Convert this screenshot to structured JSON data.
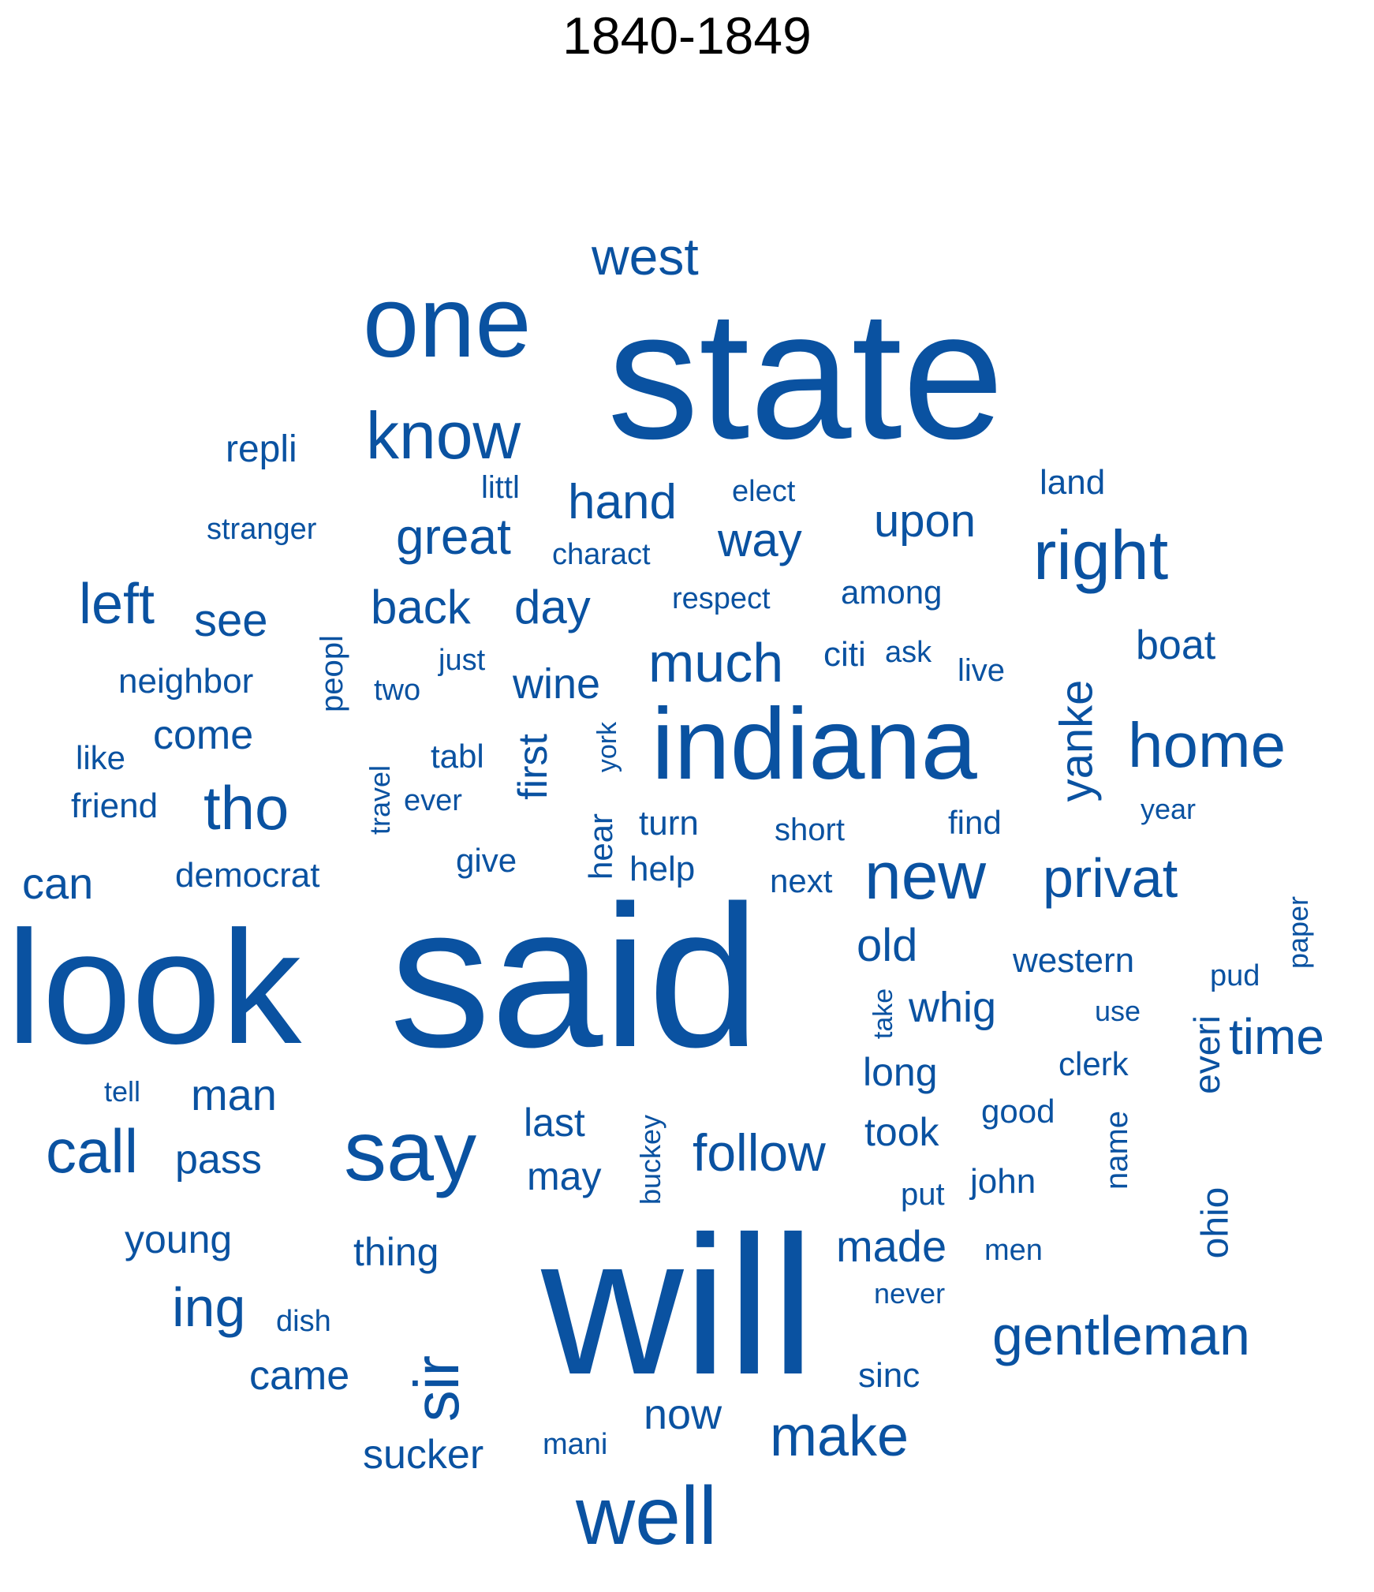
{
  "title": "1840-1849",
  "colors": {
    "word": "#0a52a1",
    "title": "#000000"
  },
  "words": [
    "state",
    "said",
    "will",
    "look",
    "indiana",
    "one",
    "say",
    "know",
    "well",
    "right",
    "home",
    "new",
    "privat",
    "gentleman",
    "much",
    "tho",
    "call",
    "left",
    "hand",
    "great",
    "upon",
    "west",
    "way",
    "back",
    "day",
    "follow",
    "make",
    "ing",
    "sir",
    "first",
    "yanke",
    "see",
    "time",
    "wine",
    "come",
    "man",
    "old",
    "whig",
    "long",
    "made",
    "took",
    "pass",
    "can",
    "last",
    "may",
    "thing",
    "young",
    "came",
    "now",
    "sucker",
    "repli",
    "stranger",
    "littl",
    "elect",
    "charact",
    "land",
    "respect",
    "among",
    "boat",
    "neighbor",
    "peopl",
    "two",
    "just",
    "citi",
    "ask",
    "live",
    "like",
    "tabl",
    "york",
    "friend",
    "travel",
    "ever",
    "turn",
    "short",
    "find",
    "year",
    "democrat",
    "give",
    "hear",
    "help",
    "next",
    "western",
    "pud",
    "paper",
    "take",
    "use",
    "tell",
    "clerk",
    "everi",
    "good",
    "name",
    "buckey",
    "put",
    "john",
    "ohio",
    "men",
    "never",
    "dish",
    "sinc",
    "mani"
  ]
}
